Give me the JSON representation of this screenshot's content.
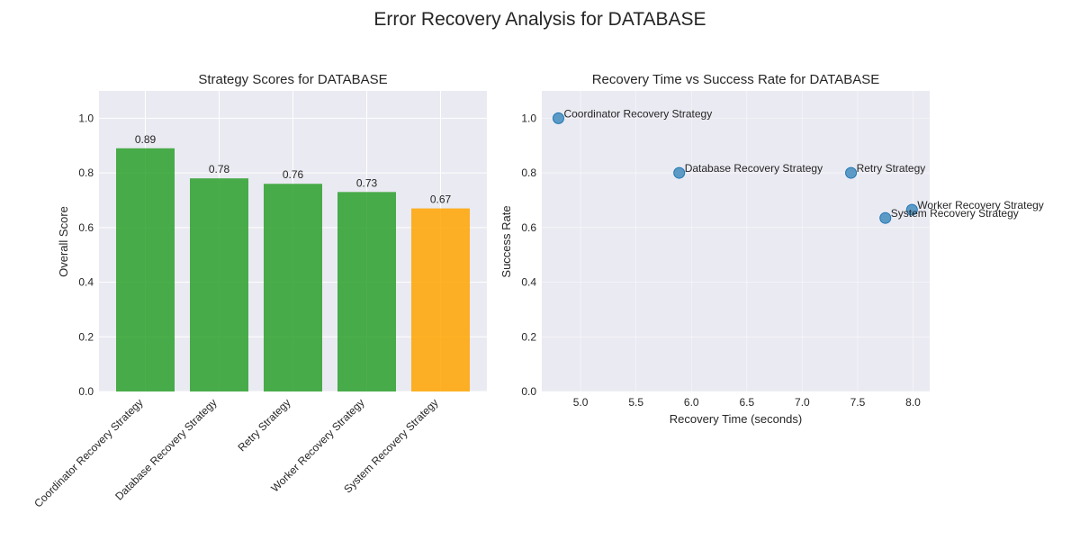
{
  "figure_title": "Error Recovery Analysis for DATABASE",
  "colors": {
    "plot_bg": "#eaeaf2",
    "grid": "#ffffff",
    "good": "#2ca02c",
    "fair": "#ffa500",
    "point": "#1f77b4"
  },
  "chart_data": [
    {
      "type": "bar",
      "title": "Strategy Scores for DATABASE",
      "xlabel": "",
      "ylabel": "Overall Score",
      "categories": [
        "Coordinator Recovery Strategy",
        "Database Recovery Strategy",
        "Retry Strategy",
        "Worker Recovery Strategy",
        "System Recovery Strategy"
      ],
      "values": [
        0.89,
        0.78,
        0.76,
        0.73,
        0.67
      ],
      "value_labels": [
        "0.89",
        "0.78",
        "0.76",
        "0.73",
        "0.67"
      ],
      "bar_colors": [
        "good",
        "good",
        "good",
        "good",
        "fair"
      ],
      "ylim": [
        0,
        1.1
      ],
      "yticks": [
        0.0,
        0.2,
        0.4,
        0.6,
        0.8,
        1.0
      ],
      "ytick_labels": [
        "0.0",
        "0.2",
        "0.4",
        "0.6",
        "0.8",
        "1.0"
      ],
      "grid": true
    },
    {
      "type": "scatter",
      "title": "Recovery Time vs Success Rate for DATABASE",
      "xlabel": "Recovery Time (seconds)",
      "ylabel": "Success Rate",
      "points": [
        {
          "label": "Coordinator Recovery Strategy",
          "x": 4.8,
          "y": 1.0
        },
        {
          "label": "Database Recovery Strategy",
          "x": 5.89,
          "y": 0.8
        },
        {
          "label": "Retry Strategy",
          "x": 7.44,
          "y": 0.8
        },
        {
          "label": "Worker Recovery Strategy",
          "x": 7.99,
          "y": 0.665
        },
        {
          "label": "System Recovery Strategy",
          "x": 7.75,
          "y": 0.635
        }
      ],
      "xlim": [
        4.65,
        8.15
      ],
      "ylim": [
        0,
        1.1
      ],
      "xticks": [
        5.0,
        5.5,
        6.0,
        6.5,
        7.0,
        7.5,
        8.0
      ],
      "xtick_labels": [
        "5.0",
        "5.5",
        "6.0",
        "6.5",
        "7.0",
        "7.5",
        "8.0"
      ],
      "yticks": [
        0.0,
        0.2,
        0.4,
        0.6,
        0.8,
        1.0
      ],
      "ytick_labels": [
        "0.0",
        "0.2",
        "0.4",
        "0.6",
        "0.8",
        "1.0"
      ],
      "grid": true
    }
  ]
}
